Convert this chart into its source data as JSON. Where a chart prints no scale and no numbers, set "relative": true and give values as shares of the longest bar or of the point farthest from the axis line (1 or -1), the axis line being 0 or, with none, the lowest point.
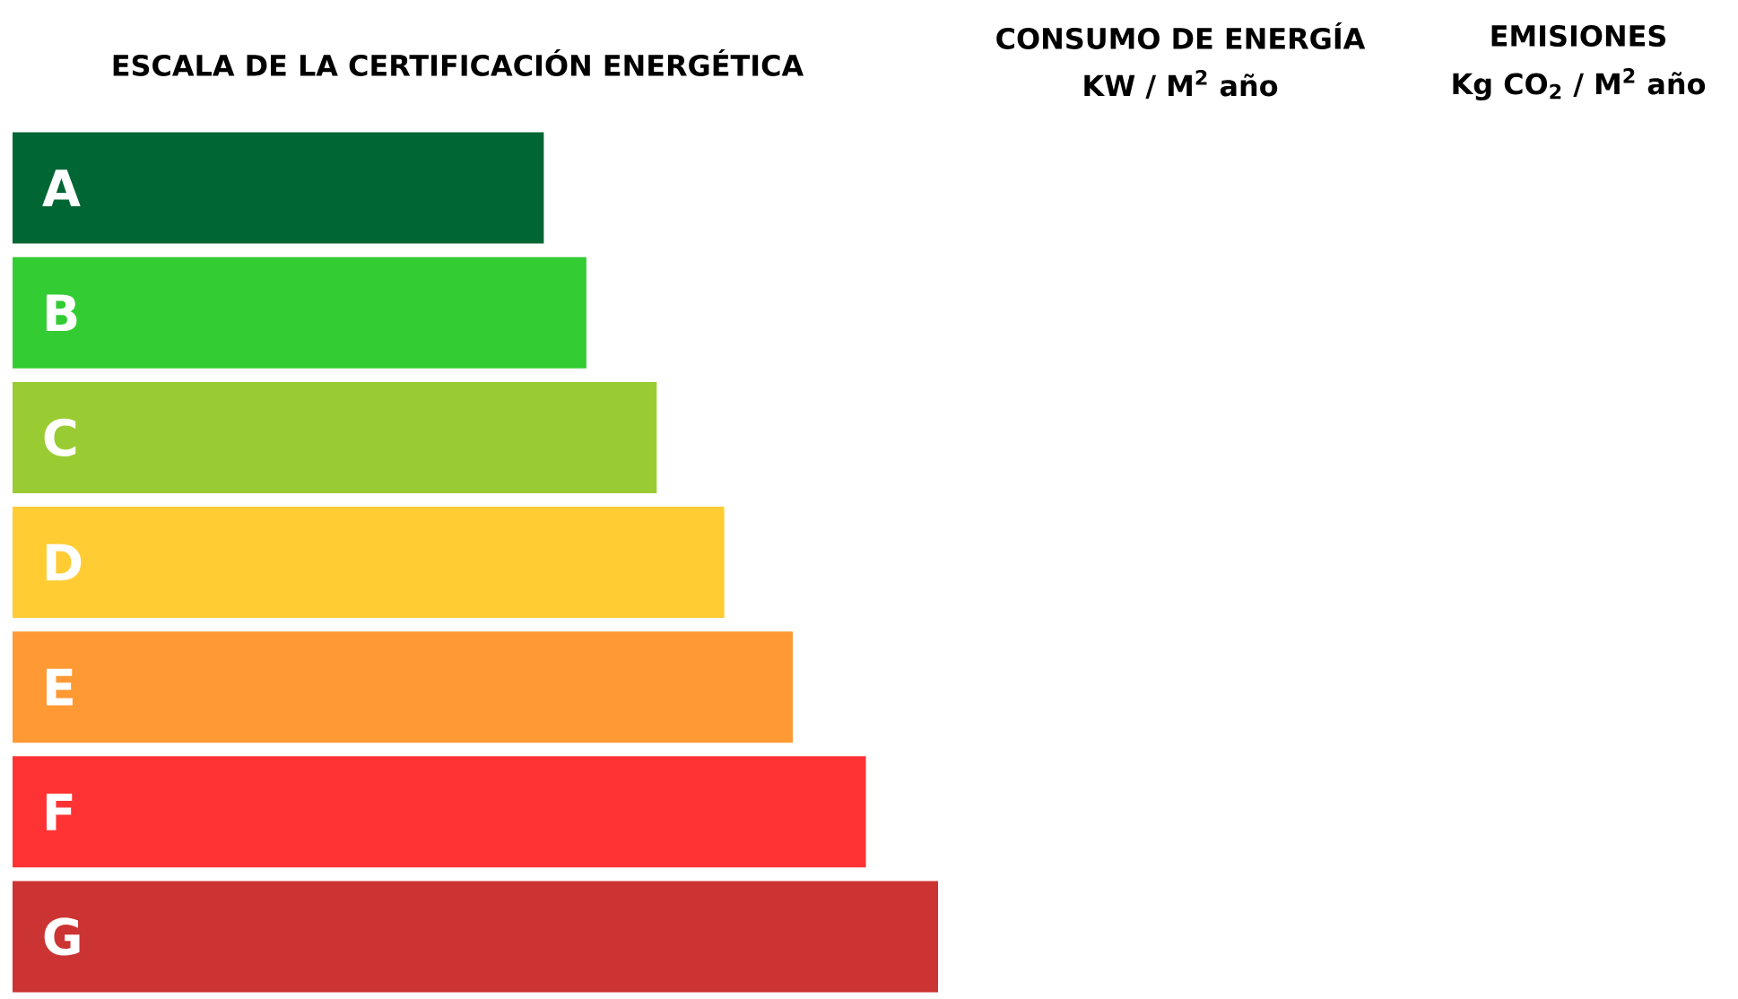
{
  "chart_data": {
    "type": "bar",
    "orientation": "horizontal",
    "relative": true,
    "title": "ESCALA DE LA CERTIFICACIÓN ENERGÉTICA",
    "annotations": [
      "CONSUMO DE ENERGÍA",
      "KW / M$^{2}$ año",
      "EMISIONES",
      "Kg CO$_{2}$ / M$^{2}$ año"
    ],
    "categories": [
      "A",
      "B",
      "C",
      "D",
      "E",
      "F",
      "G"
    ],
    "values": [
      0.574,
      0.62,
      0.696,
      0.769,
      0.843,
      0.922,
      1
    ],
    "colors": [
      "#006633",
      "#33cc33",
      "#99cc33",
      "#ffcc33",
      "#ff9933",
      "#ff3333",
      "#cc3333"
    ]
  }
}
